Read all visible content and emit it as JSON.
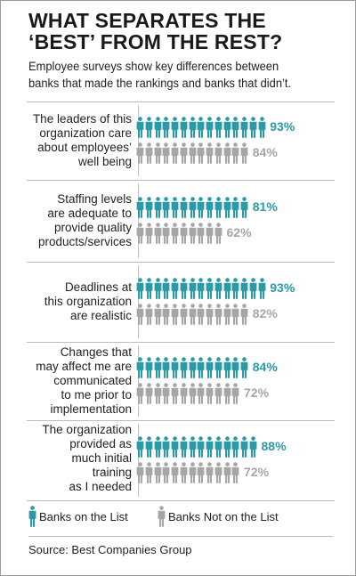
{
  "title_lines": [
    "WHAT SEPARATES THE",
    "‘BEST’ FROM THE REST?"
  ],
  "subtitle_lines": [
    "Employee surveys show key differences between",
    "banks that made the rankings and banks that didn’t."
  ],
  "legend": {
    "list_label": "Banks on the List",
    "notlist_label": "Banks Not on the List"
  },
  "source": "Source: Best Companies Group",
  "colors": {
    "list": "#2a9aa6",
    "notlist": "#a6a6a6"
  },
  "icon": "person-icon",
  "chart_data": {
    "type": "bar",
    "title": "WHAT SEPARATES THE ‘BEST’ FROM THE REST?",
    "subtitle": "Employee surveys show key differences between banks that made the rankings and banks that didn’t.",
    "categories": [
      "The leaders of this organization care about employees’ well being",
      "Staffing levels are adequate to provide quality products/services",
      "Deadlines at this organization are realistic",
      "Changes that may affect me are communicated to me prior to implementation",
      "The organization provided as much initial training as I needed"
    ],
    "category_lines": [
      [
        "The leaders of this",
        "organization care",
        "about employees’",
        "well being"
      ],
      [
        "Staffing levels",
        "are adequate to",
        "provide quality",
        "products/services"
      ],
      [
        "Deadlines at",
        "this organization",
        "are realistic"
      ],
      [
        "Changes that",
        "may affect me are",
        "communicated",
        "to me prior to",
        "implementation"
      ],
      [
        "The organization",
        "provided as",
        "much initial",
        "training",
        "as I needed"
      ]
    ],
    "series": [
      {
        "name": "Banks on the List",
        "values": [
          93,
          81,
          93,
          84,
          88
        ],
        "labels": [
          "93%",
          "81%",
          "93%",
          "84%",
          "88%"
        ]
      },
      {
        "name": "Banks Not on the List",
        "values": [
          84,
          62,
          82,
          72,
          72
        ],
        "labels": [
          "84%",
          "62%",
          "82%",
          "72%",
          "72%"
        ]
      }
    ],
    "xlim": [
      0,
      100
    ],
    "legend_position": "bottom"
  }
}
